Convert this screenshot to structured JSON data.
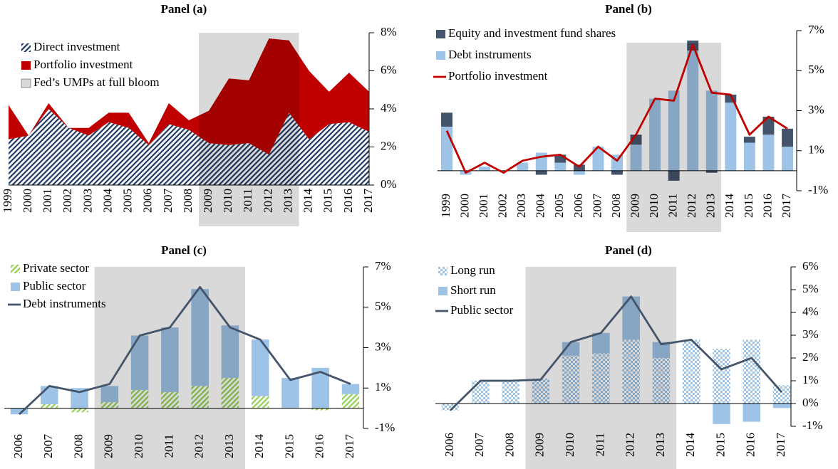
{
  "chart_data": [
    {
      "type": "area",
      "title": "Panel (a)",
      "categories": [
        "1999",
        "2000",
        "2001",
        "2002",
        "2003",
        "2004",
        "2005",
        "2006",
        "2007",
        "2008",
        "2009",
        "2010",
        "2011",
        "2012",
        "2013",
        "2014",
        "2015",
        "2016",
        "2017"
      ],
      "series": [
        {
          "name": "Direct investment",
          "type": "area",
          "color": "#1f3864",
          "pattern": "hatch",
          "values": [
            2.4,
            2.6,
            4.0,
            3.0,
            2.6,
            3.3,
            3.0,
            2.1,
            3.2,
            2.9,
            2.2,
            2.1,
            2.2,
            1.6,
            3.8,
            2.4,
            3.2,
            3.3,
            2.8
          ]
        },
        {
          "name": "Portfolio investment",
          "type": "area",
          "color": "#c00000",
          "values": [
            1.8,
            0,
            0.3,
            0,
            0.4,
            0.5,
            0.8,
            0.1,
            1.1,
            0.5,
            1.7,
            3.5,
            3.3,
            6.1,
            3.8,
            3.6,
            1.7,
            2.6,
            2.1
          ]
        }
      ],
      "shade": {
        "name": "Fed’s UMPs at full bloom",
        "from": "2009",
        "to": "2013",
        "color": "#d9d9d9"
      },
      "ylim": [
        0,
        8
      ],
      "yticks": [
        {
          "value": 0,
          "label": "0%"
        },
        {
          "value": 2,
          "label": "2%"
        },
        {
          "value": 4,
          "label": "4%"
        },
        {
          "value": 6,
          "label": "6%"
        },
        {
          "value": 8,
          "label": "8%"
        }
      ]
    },
    {
      "type": "bar",
      "title": "Panel (b)",
      "categories": [
        "1999",
        "2000",
        "2001",
        "2002",
        "2003",
        "2004",
        "2005",
        "2006",
        "2007",
        "2008",
        "2009",
        "2010",
        "2011",
        "2012",
        "2013",
        "2014",
        "2015",
        "2016",
        "2017"
      ],
      "series": [
        {
          "name": "Equity and investment fund shares",
          "type": "bar",
          "color": "#44546a",
          "values": [
            0.7,
            0,
            0,
            0,
            0,
            -0.2,
            0.4,
            0.3,
            0,
            -0.2,
            0.5,
            0,
            -0.5,
            0.5,
            -0.1,
            0.4,
            0.3,
            0.9,
            0.9
          ]
        },
        {
          "name": "Debt instruments",
          "type": "bar",
          "color": "#9dc3e6",
          "values": [
            2.2,
            -0.2,
            0.2,
            0,
            0.4,
            0.9,
            0.4,
            -0.2,
            1.2,
            0.8,
            1.3,
            3.6,
            4.0,
            6.0,
            4.0,
            3.4,
            1.4,
            1.8,
            1.2
          ]
        },
        {
          "name": "Portfolio investment",
          "type": "line",
          "color": "#c00000",
          "values": [
            2.0,
            -0.1,
            0.4,
            -0.1,
            0.5,
            0.7,
            0.8,
            0.2,
            1.2,
            0.5,
            1.8,
            3.6,
            3.5,
            6.3,
            3.9,
            3.8,
            1.8,
            2.7,
            2.1
          ]
        }
      ],
      "stack_reverse": true,
      "shade": {
        "from": "2009",
        "to": "2013",
        "color": "#d9d9d9"
      },
      "ylim": [
        -1,
        7
      ],
      "yticks": [
        {
          "value": -1,
          "label": "-1%"
        },
        {
          "value": 1,
          "label": "1%"
        },
        {
          "value": 3,
          "label": "3%"
        },
        {
          "value": 5,
          "label": "5%"
        },
        {
          "value": 7,
          "label": "7%"
        }
      ]
    },
    {
      "type": "bar",
      "title": "Panel (c)",
      "categories": [
        "2006",
        "2007",
        "2008",
        "2009",
        "2010",
        "2011",
        "2012",
        "2013",
        "2014",
        "2015",
        "2016",
        "2017"
      ],
      "series": [
        {
          "name": "Private sector",
          "type": "bar",
          "color": "#92d050",
          "pattern": "hatch",
          "values": [
            0,
            0.2,
            -0.2,
            0.3,
            0.9,
            0.8,
            1.1,
            1.5,
            0.6,
            0,
            -0.1,
            0.7
          ]
        },
        {
          "name": "Public sector",
          "type": "bar",
          "color": "#9dc3e6",
          "values": [
            -0.3,
            0.9,
            1.0,
            0.8,
            2.7,
            3.2,
            4.8,
            2.6,
            2.8,
            1.5,
            2.0,
            0.5
          ]
        },
        {
          "name": "Debt instruments",
          "type": "line",
          "color": "#44546a",
          "values": [
            -0.3,
            1.1,
            0.8,
            1.2,
            3.6,
            4.0,
            6.0,
            4.0,
            3.4,
            1.4,
            1.8,
            1.2
          ]
        }
      ],
      "shade": {
        "from": "2009",
        "to": "2013",
        "color": "#d9d9d9"
      },
      "ylim": [
        -1,
        7
      ],
      "yticks": [
        {
          "value": -1,
          "label": "-1%"
        },
        {
          "value": 1,
          "label": "1%"
        },
        {
          "value": 3,
          "label": "3%"
        },
        {
          "value": 5,
          "label": "5%"
        },
        {
          "value": 7,
          "label": "7%"
        }
      ]
    },
    {
      "type": "bar",
      "title": "Panel (d)",
      "categories": [
        "2006",
        "2007",
        "2008",
        "2009",
        "2010",
        "2011",
        "2012",
        "2013",
        "2014",
        "2015",
        "2016",
        "2017"
      ],
      "series": [
        {
          "name": "Long run",
          "type": "bar",
          "color": "#9dc3e6",
          "pattern": "check",
          "values": [
            -0.3,
            1.0,
            1.0,
            1.1,
            2.1,
            2.2,
            2.8,
            2.0,
            2.8,
            2.4,
            2.8,
            0.8
          ]
        },
        {
          "name": "Short run",
          "type": "bar",
          "color": "#9dc3e6",
          "values": [
            0,
            0,
            0,
            0,
            0.6,
            0.9,
            1.9,
            0.7,
            0,
            -0.9,
            -0.8,
            -0.2
          ]
        },
        {
          "name": "Public sector",
          "type": "line",
          "color": "#44546a",
          "values": [
            -0.3,
            1.0,
            1.0,
            1.05,
            2.7,
            3.1,
            4.7,
            2.6,
            2.8,
            1.5,
            2.0,
            0.5
          ]
        }
      ],
      "shade": {
        "from": "2009",
        "to": "2013",
        "color": "#d9d9d9"
      },
      "ylim": [
        -1,
        6
      ],
      "yticks": [
        {
          "value": -1,
          "label": "-1%"
        },
        {
          "value": 0,
          "label": "0%"
        },
        {
          "value": 1,
          "label": "1%"
        },
        {
          "value": 2,
          "label": "2%"
        },
        {
          "value": 3,
          "label": "3%"
        },
        {
          "value": 4,
          "label": "4%"
        },
        {
          "value": 5,
          "label": "5%"
        },
        {
          "value": 6,
          "label": "6%"
        }
      ]
    }
  ]
}
